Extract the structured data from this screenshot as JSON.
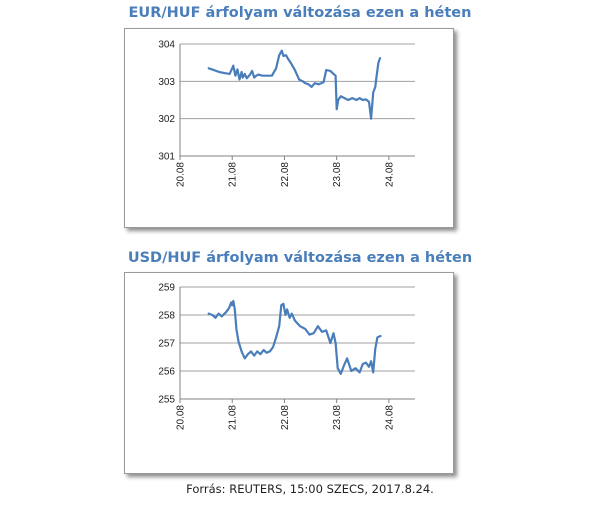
{
  "colors": {
    "title": "#4a7ebb",
    "line": "#4a7ebb",
    "grid": "#a0a0a0",
    "axis": "#808080"
  },
  "source_text": "Forrás: REUTERS, 15:00 SZECS, 2017.8.24.",
  "chart_data": [
    {
      "type": "line",
      "title": "EUR/HUF árfolyam változása ezen a héten",
      "xlabel": "",
      "ylabel": "",
      "ylim": [
        301,
        304
      ],
      "yticks": [
        "301",
        "302",
        "303",
        "304"
      ],
      "xlim": [
        0,
        4.5
      ],
      "xticks": [
        "20.08",
        "21.08",
        "22.08",
        "23.08",
        "24.08"
      ],
      "grid": true,
      "legend": "none",
      "series": [
        {
          "x": [
            0.55,
            0.65,
            0.75,
            0.85,
            0.95,
            1.0,
            1.02,
            1.06,
            1.1,
            1.14,
            1.18,
            1.2,
            1.24,
            1.28,
            1.34,
            1.38,
            1.42,
            1.46,
            1.5,
            1.58,
            1.66,
            1.76,
            1.84,
            1.9,
            1.95,
            1.98,
            2.03,
            2.07,
            2.12,
            2.2,
            2.28,
            2.35,
            2.4,
            2.46,
            2.52,
            2.58,
            2.66,
            2.75,
            2.8,
            2.88,
            2.94,
            2.98,
            3.0,
            3.03,
            3.08,
            3.15,
            3.22,
            3.3,
            3.38,
            3.44,
            3.5,
            3.56,
            3.62,
            3.66,
            3.7,
            3.74,
            3.76,
            3.8,
            3.83
          ],
          "y": [
            303.35,
            303.3,
            303.25,
            303.22,
            303.2,
            303.35,
            303.42,
            303.15,
            303.32,
            303.05,
            303.25,
            303.1,
            303.2,
            303.08,
            303.18,
            303.28,
            303.1,
            303.15,
            303.18,
            303.15,
            303.15,
            303.15,
            303.35,
            303.7,
            303.82,
            303.68,
            303.7,
            303.6,
            303.5,
            303.3,
            303.05,
            303.0,
            302.95,
            302.92,
            302.85,
            302.95,
            302.92,
            302.98,
            303.3,
            303.28,
            303.2,
            303.15,
            302.25,
            302.5,
            302.6,
            302.55,
            302.5,
            302.55,
            302.5,
            302.55,
            302.5,
            302.52,
            302.45,
            302.0,
            302.7,
            302.85,
            303.1,
            303.5,
            303.62
          ]
        }
      ]
    },
    {
      "type": "line",
      "title": "USD/HUF árfolyam változása ezen a héten",
      "xlabel": "",
      "ylabel": "",
      "ylim": [
        255,
        259
      ],
      "yticks": [
        "255",
        "256",
        "257",
        "258",
        "259"
      ],
      "xlim": [
        0,
        4.5
      ],
      "xticks": [
        "20.08",
        "21.08",
        "22.08",
        "23.08",
        "24.08"
      ],
      "grid": true,
      "legend": "none",
      "series": [
        {
          "x": [
            0.55,
            0.62,
            0.68,
            0.74,
            0.8,
            0.88,
            0.94,
            0.98,
            1.0,
            1.02,
            1.05,
            1.08,
            1.12,
            1.18,
            1.24,
            1.3,
            1.36,
            1.42,
            1.48,
            1.54,
            1.6,
            1.66,
            1.72,
            1.78,
            1.84,
            1.9,
            1.94,
            1.98,
            2.02,
            2.05,
            2.1,
            2.14,
            2.2,
            2.3,
            2.4,
            2.48,
            2.56,
            2.64,
            2.72,
            2.8,
            2.88,
            2.94,
            2.98,
            3.02,
            3.08,
            3.14,
            3.2,
            3.28,
            3.36,
            3.44,
            3.5,
            3.56,
            3.62,
            3.66,
            3.7,
            3.74,
            3.78,
            3.84
          ],
          "y": [
            258.05,
            258.0,
            257.9,
            258.05,
            257.95,
            258.1,
            258.25,
            258.45,
            258.35,
            258.5,
            258.2,
            257.5,
            257.05,
            256.7,
            256.45,
            256.6,
            256.7,
            256.55,
            256.7,
            256.6,
            256.75,
            256.65,
            256.7,
            256.85,
            257.2,
            257.6,
            258.35,
            258.4,
            258.0,
            258.2,
            257.9,
            258.05,
            257.8,
            257.6,
            257.5,
            257.3,
            257.35,
            257.6,
            257.4,
            257.45,
            257.0,
            257.35,
            257.0,
            256.1,
            255.9,
            256.2,
            256.45,
            256.0,
            256.1,
            255.95,
            256.25,
            256.3,
            256.15,
            256.35,
            255.95,
            256.8,
            257.2,
            257.25
          ]
        }
      ]
    }
  ]
}
